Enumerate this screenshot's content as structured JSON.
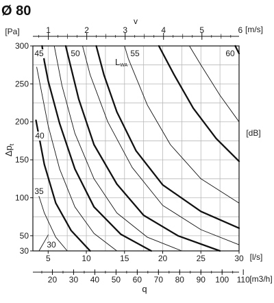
{
  "chart_data": {
    "type": "line",
    "title": "Ø 80",
    "grid": true,
    "y": {
      "label_main": "Δp",
      "label_sub": "t",
      "unit": "[Pa]",
      "range": [
        30,
        300
      ],
      "ticks": [
        30,
        50,
        100,
        150,
        200,
        250,
        300
      ]
    },
    "x_bottom": {
      "label": "q",
      "unit": "[l/s]",
      "range": [
        3,
        30
      ],
      "ticks": [
        5,
        10,
        15,
        20,
        25,
        30
      ]
    },
    "x_m3h": {
      "unit": "[m3/h]",
      "ticks": [
        20,
        30,
        40,
        50,
        60,
        70,
        80,
        90,
        100,
        110
      ]
    },
    "x_top": {
      "label": "v",
      "unit": "[m/s]",
      "ticks": [
        1,
        2,
        3,
        4,
        5,
        6
      ]
    },
    "right_axis_unit": "[dB]",
    "series_label": "L",
    "series_label_sub": "WA",
    "series": [
      {
        "db": 30,
        "label": "30",
        "major": false,
        "points": [
          [
            3.8,
            30
          ],
          [
            4.5,
            42
          ],
          [
            5.0,
            51
          ]
        ]
      },
      {
        "db": 32.5,
        "label": "",
        "major": false,
        "points": [
          [
            7.5,
            30
          ],
          [
            6.0,
            48
          ],
          [
            4.5,
            80
          ],
          [
            3.6,
            108
          ]
        ]
      },
      {
        "db": 35,
        "label": "35",
        "major": true,
        "points": [
          [
            10.5,
            30
          ],
          [
            8.0,
            57
          ],
          [
            6.0,
            93
          ],
          [
            4.5,
            144
          ],
          [
            3.4,
            202
          ]
        ]
      },
      {
        "db": 37.5,
        "label": "",
        "major": false,
        "points": [
          [
            14.0,
            30
          ],
          [
            11.0,
            53
          ],
          [
            8.5,
            88
          ],
          [
            6.5,
            138
          ],
          [
            5.0,
            195
          ],
          [
            3.5,
            272
          ]
        ]
      },
      {
        "db": 40,
        "label": "40",
        "major": true,
        "points": [
          [
            18.5,
            30
          ],
          [
            14.5,
            52
          ],
          [
            11.0,
            88
          ],
          [
            8.5,
            138
          ],
          [
            6.5,
            198
          ],
          [
            5.0,
            254
          ],
          [
            4.5,
            280
          ],
          [
            4.2,
            300
          ]
        ]
      },
      {
        "db": 42.5,
        "label": "",
        "major": false,
        "points": [
          [
            22.5,
            30
          ],
          [
            18.0,
            48
          ],
          [
            14.0,
            80
          ],
          [
            11.0,
            125
          ],
          [
            8.5,
            185
          ],
          [
            6.8,
            248
          ],
          [
            5.8,
            300
          ]
        ]
      },
      {
        "db": 45,
        "label": "45",
        "major": true,
        "points": [
          [
            27.5,
            30
          ],
          [
            22.0,
            50
          ],
          [
            17.5,
            77
          ],
          [
            14.0,
            118
          ],
          [
            11.0,
            170
          ],
          [
            9.0,
            230
          ],
          [
            7.3,
            300
          ]
        ]
      },
      {
        "db": 47.5,
        "label": "",
        "major": false,
        "points": [
          [
            30.0,
            38
          ],
          [
            25.0,
            58
          ],
          [
            20.0,
            90
          ],
          [
            16.0,
            140
          ],
          [
            12.8,
            200
          ],
          [
            10.5,
            262
          ],
          [
            9.5,
            300
          ]
        ]
      },
      {
        "db": 50,
        "label": "50",
        "major": true,
        "points": [
          [
            30.0,
            60
          ],
          [
            25.0,
            82
          ],
          [
            20.0,
            117
          ],
          [
            16.5,
            162
          ],
          [
            14.0,
            213
          ],
          [
            12.3,
            262
          ],
          [
            11.3,
            300
          ]
        ]
      },
      {
        "db": 52.5,
        "label": "",
        "major": false,
        "points": [
          [
            30.0,
            93
          ],
          [
            25.0,
            125
          ],
          [
            21.0,
            170
          ],
          [
            18.0,
            222
          ],
          [
            15.5,
            283
          ],
          [
            15.0,
            300
          ]
        ]
      },
      {
        "db": 55,
        "label": "55",
        "major": true,
        "points": [
          [
            30.0,
            148
          ],
          [
            27.0,
            178
          ],
          [
            24.0,
            218
          ],
          [
            21.5,
            262
          ],
          [
            19.5,
            300
          ]
        ]
      },
      {
        "db": 57.5,
        "label": "",
        "major": false,
        "points": [
          [
            30.0,
            200
          ],
          [
            27.5,
            235
          ],
          [
            25.0,
            275
          ],
          [
            23.5,
            300
          ]
        ]
      },
      {
        "db": 60,
        "label": "60",
        "major": true,
        "points": [
          [
            30.0,
            290
          ],
          [
            29.5,
            300
          ]
        ]
      }
    ]
  }
}
